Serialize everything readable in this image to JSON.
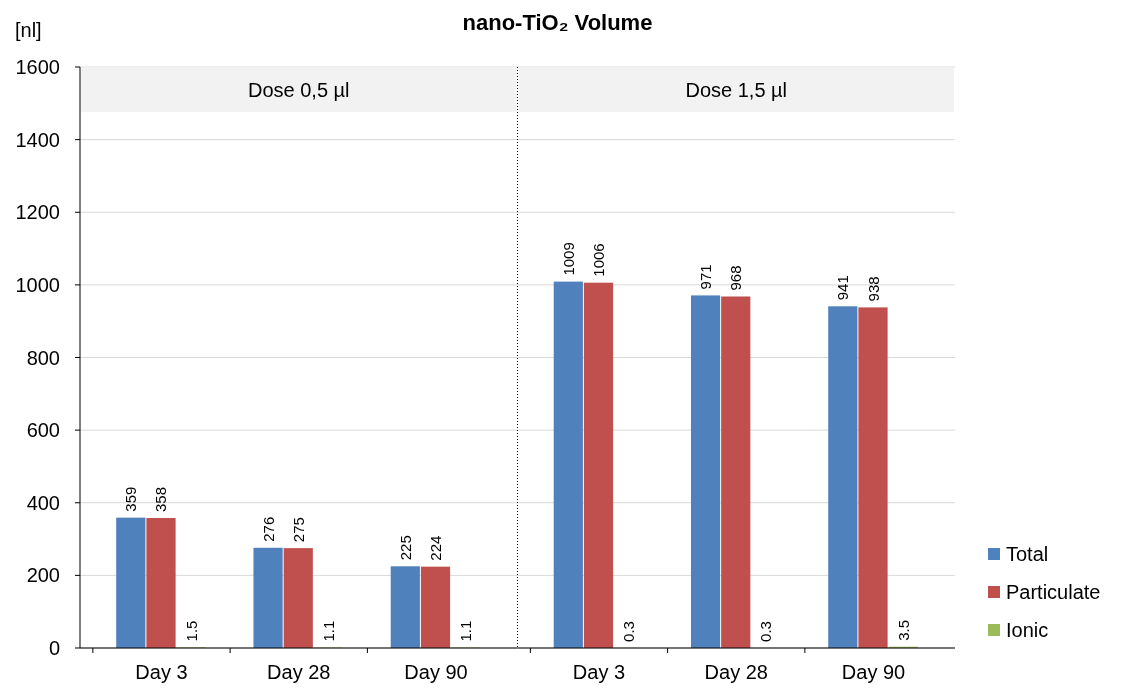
{
  "chart_data": [
    {
      "type": "bar",
      "title": "nano-TiO₂   Volume",
      "subtitle": "Dose 0,5 µl",
      "ylabel": "[nl]",
      "categories": [
        "Day 3",
        "Day 28",
        "Day 90"
      ],
      "ylim": [
        0,
        1600
      ],
      "yticks": [
        0,
        200,
        400,
        600,
        800,
        1000,
        1200,
        1400,
        1600
      ],
      "grid": "y",
      "data_labels": true,
      "series": [
        {
          "color": "#4f81bd",
          "values": [
            359,
            276,
            225
          ]
        },
        {
          "color": "#c0504d",
          "values": [
            358,
            275,
            224
          ]
        },
        {
          "color": "#9bbb59",
          "values": [
            1.5,
            1.1,
            1.1
          ]
        }
      ]
    },
    {
      "type": "bar",
      "subtitle": "Dose 1,5 µl",
      "categories": [
        "Day 3",
        "Day 28",
        "Day 90"
      ],
      "ylim": [
        0,
        1600
      ],
      "yticks": [
        0,
        200,
        400,
        600,
        800,
        1000,
        1200,
        1400,
        1600
      ],
      "grid": "y",
      "tick_labels": "x",
      "data_labels": true,
      "legend": "right",
      "series": [
        {
          "name": "Total",
          "color": "#4f81bd",
          "values": [
            1009,
            971,
            941
          ]
        },
        {
          "name": "Particulate",
          "color": "#c0504d",
          "values": [
            1006,
            968,
            938
          ]
        },
        {
          "name": "Ionic",
          "color": "#9bbb59",
          "values": [
            0.3,
            0.3,
            3.5
          ]
        }
      ]
    }
  ]
}
